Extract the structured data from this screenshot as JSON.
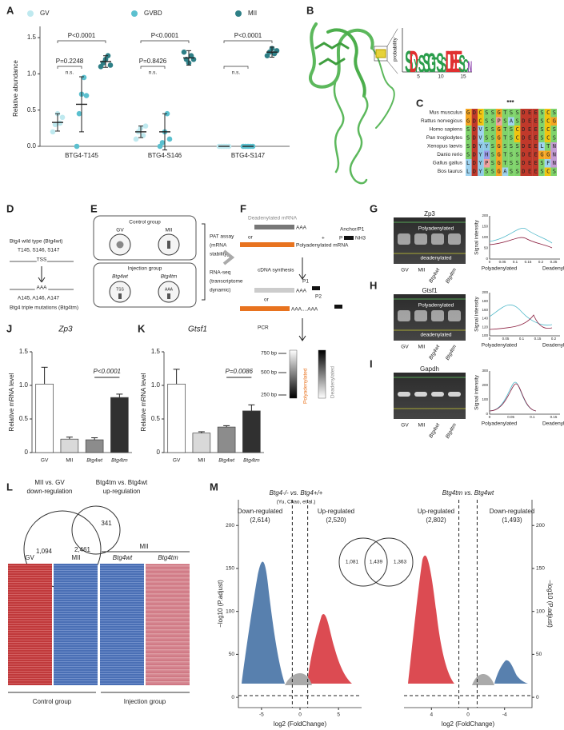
{
  "chart_data": [
    {
      "type": "dot",
      "ylabel": "Relative abundance",
      "categories": [
        "BTG4-T145",
        "BTG4-S146",
        "BTG4-S147"
      ],
      "series": [
        {
          "name": "GV",
          "color": "#bfe9ef",
          "values": [
            0.33,
            0.2,
            0
          ],
          "errors": [
            0.12,
            0.08,
            0
          ],
          "points": [
            [
              0.2,
              0.3,
              0.45,
              0.32,
              0.4
            ],
            [
              0.1,
              0.2,
              0.25,
              0.15,
              0.28
            ],
            [
              0,
              0,
              0,
              0,
              0
            ]
          ]
        },
        {
          "name": "GVBD",
          "color": "#5bc0cf",
          "values": [
            0.58,
            0.2,
            0
          ],
          "errors": [
            0.38,
            0.25,
            0
          ],
          "points": [
            [
              0,
              0.45,
              0.72,
              0.95,
              0.7
            ],
            [
              0,
              0.05,
              0.2,
              0.45,
              0.1
            ],
            [
              0,
              0,
              0,
              0,
              0
            ]
          ]
        },
        {
          "name": "MII",
          "color": "#2e7f86",
          "values": [
            1.17,
            1.22,
            1.3
          ],
          "errors": [
            0.08,
            0.1,
            0.07
          ],
          "points": [
            [
              1.1,
              1.15,
              1.2,
              1.25,
              1.12
            ],
            [
              1.3,
              1.2,
              1.15,
              1.25,
              1.2
            ],
            [
              1.25,
              1.3,
              1.35,
              1.28,
              1.32
            ]
          ]
        }
      ],
      "annotations": [
        {
          "top": "P<0.0001",
          "pair": "P=0.2248",
          "ns": "n.s."
        },
        {
          "top": "P<0.0001",
          "pair": "P=0.8426",
          "ns": "n.s."
        },
        {
          "top": "P<0.0001",
          "ns": "n.s."
        }
      ],
      "ylim": [
        0,
        1.6
      ],
      "yticks": [
        {
          "value": 0,
          "label": "0.0"
        },
        0.5,
        {
          "value": 1,
          "label": "1.0"
        },
        1.5
      ]
    },
    {
      "type": "bar",
      "title": "Zp3",
      "ylabel": "Relative mRNA level",
      "categories": [
        "GV",
        "MII",
        "Btg4wt",
        "Btg4tm"
      ],
      "values": [
        1.02,
        0.2,
        0.19,
        0.82
      ],
      "errors": [
        0.25,
        0.03,
        0.03,
        0.05
      ],
      "colors": [
        "#ffffff",
        "#d9d9d9",
        "#8c8c8c",
        "#303030"
      ],
      "comparison": "P<0.0001",
      "ylim": [
        0,
        1.5
      ],
      "yticks": [
        0,
        0.5,
        {
          "value": 1,
          "label": "1.0"
        },
        1.5
      ]
    },
    {
      "type": "bar",
      "title": "Gtsf1",
      "ylabel": "Relative mRNA level",
      "categories": [
        "GV",
        "MII",
        "Btg4wt",
        "Btg4tm"
      ],
      "values": [
        1.02,
        0.29,
        0.38,
        0.62
      ],
      "errors": [
        0.22,
        0.02,
        0.02,
        0.09
      ],
      "colors": [
        "#ffffff",
        "#d9d9d9",
        "#8c8c8c",
        "#303030"
      ],
      "comparison": "P=0.0086",
      "ylim": [
        0,
        1.5
      ],
      "yticks": [
        0,
        0.5,
        {
          "value": 1,
          "label": "1.0"
        },
        1.5
      ]
    },
    {
      "type": "volcano",
      "xlabel": "log2 (FoldChange)",
      "ylabel": "−log10 (P.adjust)",
      "axis_side": "left",
      "xlim": [
        -8,
        8
      ],
      "xticks": [
        -5,
        0,
        5
      ],
      "ylim": [
        -12,
        230
      ],
      "yticks": [
        0,
        50,
        100,
        150,
        200
      ]
    },
    {
      "type": "volcano",
      "xlabel": "log2 (FoldChange)",
      "ylabel": "−log10 (P.adjust)",
      "axis_side": "right",
      "xlim": [
        7,
        -7
      ],
      "xticks": [
        4,
        0,
        -4
      ],
      "ylim": [
        -12,
        230
      ],
      "yticks": [
        0,
        50,
        100,
        150,
        200
      ]
    }
  ],
  "figure": {
    "panel_labels": [
      "A",
      "B",
      "C",
      "D",
      "E",
      "F",
      "G",
      "H",
      "I",
      "J",
      "K",
      "L",
      "M"
    ],
    "B": {
      "logo": [
        "S",
        "D",
        "Y",
        "S",
        "S",
        "G",
        "T",
        "S",
        "S",
        "D",
        "E",
        "E",
        "S",
        "C",
        "N"
      ],
      "logo_ylabel": "probability",
      "logo_xticks": [
        "5",
        "10",
        "15"
      ]
    },
    "C": {
      "stars": "***",
      "species": [
        "Mus musculus",
        "Rattus norvegicus",
        "Homo sapiens",
        "Pan troglodytes",
        "Xenopus laevis",
        "Danio rerio",
        "Gallus gallus",
        "Bos taurus"
      ],
      "sequences": [
        "GDCSSGTSSDEESCS",
        "GDCSSPSASDEESCG",
        "SDVSSGTSCDEESCS",
        "SDVSSGTSCDEESCS",
        "SDYYSGSSSDEELTN",
        "SDYHSGTSSDEEGGN",
        "LDYPSGTSSDEESFN",
        "LDYSSGASSDEESCS"
      ]
    },
    "D": [
      "Btg4 wild type (Btg4wt)",
      "T145, S146, S147",
      "TSS",
      "AAA",
      "A145, A146, A147",
      "Btg4 triple mutations (Btg4tm)"
    ],
    "E": [
      "Control group",
      "GV",
      "MII",
      "Injection group",
      "Btg4wt",
      "Btg4tm",
      "TSS",
      "AAA",
      "PAT assay",
      "(mRNA",
      "stability)",
      "RNA-seq",
      "(transcriptome",
      "dynamic)"
    ],
    "F": [
      "Deadenylated mRNA",
      "AAA",
      "or",
      "Polyadenylated mRNA",
      "",
      "+",
      "Anchor/P1",
      "P",
      "NH3",
      "cDNA synthesis",
      "AAA",
      "P1",
      "P2",
      "or",
      "AAA....AAA",
      "PCR",
      "750 bp",
      "500 bp",
      "250 bp",
      "Polyadenylated",
      "Deadenylated"
    ],
    "gels": [
      {
        "gene": "Zp3",
        "upper": "Polyadenylated",
        "lower": "deadenylated",
        "lanes": [
          "GV",
          "MII",
          "Btg4wt",
          "Btg4tm"
        ],
        "ylabel": "Signal intensity",
        "xticks": [
          "0",
          "0.05",
          "0.1",
          "0.15",
          "0.2",
          "0.25"
        ],
        "yticks": [
          "0",
          "50",
          "100",
          "150",
          "200"
        ],
        "xends": [
          "Polyadenylated",
          "Deadenylated"
        ]
      },
      {
        "gene": "Gtsf1",
        "upper": "Polyadenylated",
        "lower": "deadenylated",
        "lanes": [
          "GV",
          "MII",
          "Btg4wt",
          "Btg4tm"
        ],
        "ylabel": "Signal intensity",
        "xticks": [
          "0",
          "0.05",
          "0.1",
          "0.15",
          "0.2"
        ],
        "yticks": [
          "100",
          "120",
          "140",
          "160",
          "180",
          "200"
        ],
        "xends": [
          "Polyadenylated",
          "Deadenylated"
        ]
      },
      {
        "gene": "Gapdh",
        "lanes": [
          "GV",
          "MII",
          "Btg4wt",
          "Btg4tm"
        ],
        "ylabel": "Signal intensity",
        "xticks": [
          "0",
          "0.05",
          "0.1",
          "0.15"
        ],
        "yticks": [
          "0",
          "100",
          "200",
          "300"
        ],
        "xends": [
          "Polyadenylated",
          "Deadenylated"
        ]
      }
    ],
    "L": {
      "titles": [
        "MII vs. GV",
        "down-regulation",
        "Btg4tm vs. Btg4wt",
        "up-regulation"
      ],
      "venn": [
        "1,094",
        "2,461",
        "341"
      ],
      "columns": [
        "GV",
        "MII",
        "Btg4wt",
        "Btg4tm",
        "MII"
      ],
      "groups": [
        "Control group",
        "Injection group"
      ]
    },
    "M": {
      "left_title": "Btg4-/- vs. Btg4+/+",
      "left_source": "(Yu, Chao, et al.)",
      "left_groups": [
        "Down-regulated",
        "(2,614)",
        "Up-regulated",
        "(2,520)"
      ],
      "right_title": "Btg4tm vs. Btg4wt",
      "right_groups": [
        "Up-regulated",
        "(2,802)",
        "Down-regulated",
        "(1,493)"
      ],
      "venn": [
        "1,081",
        "1,439",
        "1,363"
      ]
    }
  }
}
